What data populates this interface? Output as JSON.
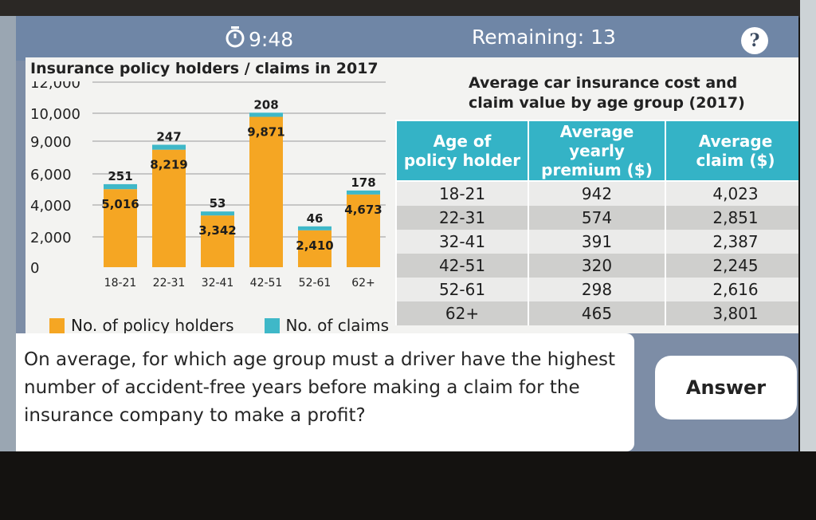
{
  "header": {
    "timer": "9:48",
    "remaining": "Remaining: 13",
    "help_label": "?"
  },
  "chart": {
    "title": "Insurance policy holders / claims in 2017"
  },
  "chart_data": {
    "type": "bar",
    "title": "Insurance policy holders / claims in 2017",
    "categories": [
      "18-21",
      "22-31",
      "32-41",
      "42-51",
      "52-61",
      "62+"
    ],
    "y_ticks": [
      0,
      2000,
      4000,
      6000,
      9000,
      10000,
      12000
    ],
    "y_tick_labels": [
      "0",
      "2,000",
      "4,000",
      "6,000",
      "9,000",
      "10,000",
      "12,000"
    ],
    "ylim": [
      0,
      12000
    ],
    "y_scale": "non-uniform tick spacing",
    "stacked": true,
    "grid": true,
    "legend_position": "bottom-left",
    "series": [
      {
        "name": "No. of policy holders",
        "color": "#f5a623",
        "values": [
          5016,
          8219,
          3342,
          9871,
          2410,
          4673
        ],
        "labels": [
          "5,016",
          "8,219",
          "3,342",
          "9,871",
          "2,410",
          "4,673"
        ]
      },
      {
        "name": "No. of claims",
        "color": "#3fb8c8",
        "values": [
          251,
          247,
          53,
          208,
          46,
          178
        ],
        "labels": [
          "251",
          "247",
          "53",
          "208",
          "46",
          "178"
        ]
      }
    ]
  },
  "legend": {
    "holders": "No. of policy holders",
    "claims": "No. of claims"
  },
  "table": {
    "title_line1": "Average car insurance cost and",
    "title_line2": "claim value by age group (2017)",
    "headers": [
      "Age of\npolicy holder",
      "Average yearly\npremium ($)",
      "Average\nclaim ($)"
    ],
    "rows": [
      [
        "18-21",
        "942",
        "4,023"
      ],
      [
        "22-31",
        "574",
        "2,851"
      ],
      [
        "32-41",
        "391",
        "2,387"
      ],
      [
        "42-51",
        "320",
        "2,245"
      ],
      [
        "52-61",
        "298",
        "2,616"
      ],
      [
        "62+",
        "465",
        "3,801"
      ]
    ]
  },
  "question": {
    "text": "On average, for which age group must a driver have the highest number of accident-free years before making a claim for the insurance company to make a profit?"
  },
  "answer_button": "Answer",
  "colors": {
    "holders": "#f5a623",
    "claims": "#3fb8c8",
    "header_bg": "#6f86a6",
    "table_header": "#34b3c6"
  }
}
